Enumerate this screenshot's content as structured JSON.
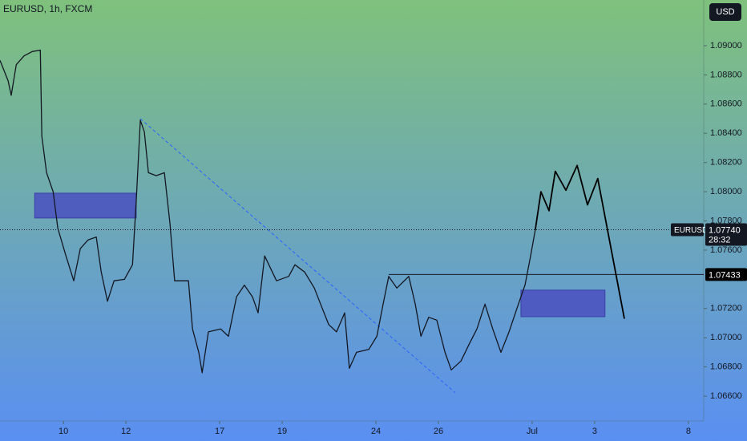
{
  "chart_data": {
    "type": "line",
    "title": "EURUSD, 1h, FXCM",
    "currency": "USD",
    "series": [
      {
        "name": "EURUSD",
        "color": "#131722",
        "x": [
          -2.03,
          -1.77,
          -1.67,
          -1.51,
          -1.26,
          -1.0,
          -0.74,
          -0.69,
          -0.54,
          -0.33,
          -0.18,
          0.08,
          0.33,
          0.54,
          0.79,
          1.05,
          1.21,
          1.41,
          1.62,
          1.95,
          2.21,
          2.33,
          2.46,
          2.59,
          2.72,
          2.97,
          3.23,
          3.41,
          3.56,
          4.0,
          4.13,
          4.33,
          4.44,
          4.64,
          5.03,
          5.28,
          5.54,
          5.79,
          6.05,
          6.23,
          6.44,
          6.82,
          7.21,
          7.41,
          7.72,
          8.03,
          8.23,
          8.49,
          8.74,
          9.0,
          9.15,
          9.38,
          9.77,
          10.03,
          10.23,
          10.41,
          10.67,
          11.05,
          11.26,
          11.44,
          11.69,
          11.95,
          12.21,
          12.41,
          12.72,
          12.97,
          13.23,
          13.49,
          13.74,
          14.0,
          14.26,
          14.51,
          14.77,
          14.95,
          15.1
        ],
        "values": [
          1.089,
          1.0876,
          1.0866,
          1.0887,
          1.0893,
          1.0896,
          1.0897,
          1.0838,
          1.0813,
          1.08,
          1.0775,
          1.0756,
          1.0739,
          1.0761,
          1.0767,
          1.0769,
          1.0745,
          1.0725,
          1.0739,
          1.074,
          1.075,
          1.0794,
          1.0849,
          1.0841,
          1.0813,
          1.0811,
          1.0813,
          1.0778,
          1.0739,
          1.0739,
          1.0706,
          1.069,
          1.0676,
          1.0704,
          1.0706,
          1.0701,
          1.0728,
          1.0736,
          1.0728,
          1.0717,
          1.0756,
          1.0739,
          1.0742,
          1.075,
          1.0745,
          1.0734,
          1.0723,
          1.0709,
          1.0704,
          1.0717,
          1.0679,
          1.069,
          1.0692,
          1.0701,
          1.0723,
          1.0742,
          1.0734,
          1.0742,
          1.0723,
          1.0701,
          1.0714,
          1.0712,
          1.069,
          1.0678,
          1.0684,
          1.0695,
          1.0706,
          1.0723,
          1.0706,
          1.069,
          1.0704,
          1.072,
          1.0736,
          1.0756,
          1.0774
        ]
      }
    ],
    "xlim": [
      -2.03,
      20.49
    ],
    "xticks": [
      {
        "value": 0,
        "label": "10"
      },
      {
        "value": 2,
        "label": "12"
      },
      {
        "value": 5,
        "label": "17"
      },
      {
        "value": 7,
        "label": "19"
      },
      {
        "value": 10,
        "label": "24"
      },
      {
        "value": 12,
        "label": "26"
      },
      {
        "value": 15,
        "label": "Jul"
      },
      {
        "value": 17,
        "label": "3"
      },
      {
        "value": 20,
        "label": "8"
      }
    ],
    "ylim": [
      1.0643,
      1.09313
    ],
    "yticks": [
      {
        "value": 1.09,
        "label": "1.09000"
      },
      {
        "value": 1.088,
        "label": "1.08800"
      },
      {
        "value": 1.086,
        "label": "1.08600"
      },
      {
        "value": 1.084,
        "label": "1.08400"
      },
      {
        "value": 1.082,
        "label": "1.08200"
      },
      {
        "value": 1.08,
        "label": "1.08000"
      },
      {
        "value": 1.078,
        "label": "1.07800"
      },
      {
        "value": 1.076,
        "label": "1.07600"
      },
      {
        "value": 1.072,
        "label": "1.07200"
      },
      {
        "value": 1.07,
        "label": "1.07000"
      },
      {
        "value": 1.068,
        "label": "1.06800"
      },
      {
        "value": 1.066,
        "label": "1.06600"
      }
    ],
    "last_price": {
      "value": 1.0774,
      "label": "1.07740",
      "countdown": "28:32"
    },
    "zones": [
      {
        "x": [
          -0.92,
          2.33
        ],
        "y": [
          1.0782,
          1.0799
        ]
      },
      {
        "x": [
          14.64,
          17.33
        ],
        "y": [
          1.07144,
          1.07326
        ]
      }
    ],
    "trendline": {
      "x": [
        2.46,
        12.54
      ],
      "y": [
        1.085,
        1.06623
      ],
      "color": "#2962ff"
    },
    "level": {
      "value": 1.07433,
      "label": "1.07433",
      "x0": 10.41
    },
    "projection": {
      "x": [
        15.1,
        15.28,
        15.54,
        15.74,
        16.08,
        16.44,
        16.77,
        17.1,
        17.95
      ],
      "values": [
        1.0774,
        1.08,
        1.0787,
        1.0814,
        1.0801,
        1.0818,
        1.0791,
        1.0809,
        1.0713
      ]
    }
  }
}
